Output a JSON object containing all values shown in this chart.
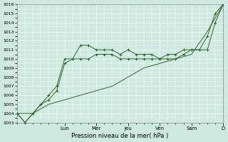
{
  "title": "",
  "xlabel": "Pression niveau de la mer( hPa )",
  "ylabel": "",
  "bg_color": "#ceeae0",
  "grid_color": "#ffffff",
  "line_color": "#2d6a2d",
  "ylim": [
    1003,
    1016
  ],
  "xlim": [
    0,
    13
  ],
  "x_day_labels": [
    "Lun",
    "Mer",
    "Jeu",
    "Ven",
    "Sam",
    "D"
  ],
  "x_day_positions": [
    3,
    5,
    7,
    9,
    11,
    13
  ],
  "series1_x": [
    0,
    0.5,
    1,
    1.5,
    2,
    2.5,
    3,
    3.5,
    4,
    4.5,
    5,
    5.5,
    6,
    6.5,
    7,
    7.5,
    8,
    8.5,
    9,
    9.5,
    10,
    10.5,
    11,
    11.5,
    12,
    12.5,
    13
  ],
  "series1_y": [
    1004,
    1003,
    1004,
    1005,
    1006,
    1007,
    1010,
    1010,
    1011.5,
    1011.5,
    1011,
    1011,
    1011,
    1010.5,
    1011,
    1010.5,
    1010.5,
    1010.5,
    1010,
    1010.5,
    1010.5,
    1011,
    1011,
    1011,
    1012.5,
    1015,
    1016
  ],
  "series2_x": [
    0,
    1,
    2,
    3,
    4,
    5,
    6,
    7,
    8,
    9,
    10,
    11,
    12,
    13
  ],
  "series2_y": [
    1004,
    1004,
    1005,
    1005.5,
    1006,
    1006.5,
    1007,
    1008,
    1009,
    1009.5,
    1010,
    1010.5,
    1013,
    1016
  ],
  "series3_x": [
    0,
    0.5,
    1,
    1.5,
    2,
    2.5,
    3,
    3.5,
    4,
    4.5,
    5,
    5.5,
    6,
    6.5,
    7,
    7.5,
    8,
    8.5,
    9,
    9.5,
    10,
    10.5,
    11,
    11.5,
    12,
    12.5,
    13
  ],
  "series3_y": [
    1004,
    1003,
    1004,
    1005,
    1005.5,
    1006.5,
    1009.5,
    1010,
    1010,
    1010,
    1010.5,
    1010.5,
    1010.5,
    1010,
    1010,
    1010,
    1010,
    1010,
    1010,
    1010,
    1010,
    1010.5,
    1011,
    1011,
    1011,
    1014,
    1016
  ]
}
